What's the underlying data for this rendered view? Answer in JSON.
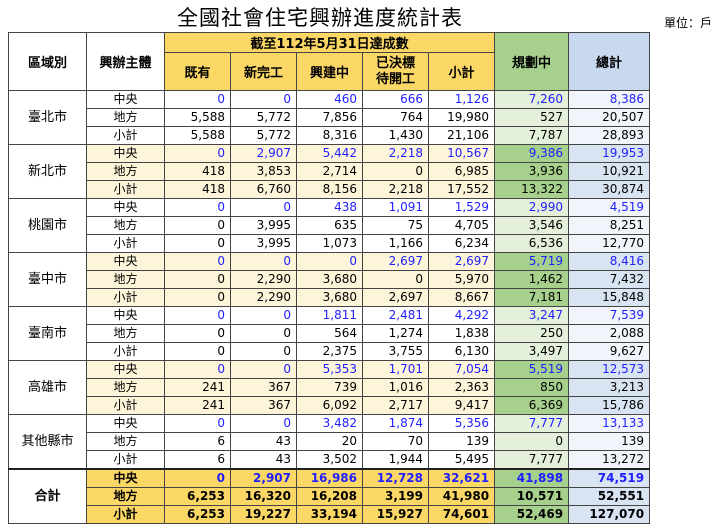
{
  "title": "全國社會住宅興辦進度統計表",
  "unit": "單位：戶",
  "headers": {
    "region": "區域別",
    "agency": "興辦主體",
    "period": "截至112年5月31日達成數",
    "existing": "既有",
    "completed": "新完工",
    "building": "興建中",
    "awarded": "已決標待開工",
    "subtotal": "小計",
    "planning": "規劃中",
    "total": "總計"
  },
  "regions": [
    {
      "name": "臺北市",
      "rows": [
        {
          "type": "中央",
          "v": [
            "0",
            "0",
            "460",
            "666",
            "1,126",
            "7,260",
            "8,386"
          ]
        },
        {
          "type": "地方",
          "v": [
            "5,588",
            "5,772",
            "7,856",
            "764",
            "19,980",
            "527",
            "20,507"
          ]
        },
        {
          "type": "小計",
          "v": [
            "5,588",
            "5,772",
            "8,316",
            "1,430",
            "21,106",
            "7,787",
            "28,893"
          ]
        }
      ]
    },
    {
      "name": "新北市",
      "rows": [
        {
          "type": "中央",
          "v": [
            "0",
            "2,907",
            "5,442",
            "2,218",
            "10,567",
            "9,386",
            "19,953"
          ]
        },
        {
          "type": "地方",
          "v": [
            "418",
            "3,853",
            "2,714",
            "0",
            "6,985",
            "3,936",
            "10,921"
          ]
        },
        {
          "type": "小計",
          "v": [
            "418",
            "6,760",
            "8,156",
            "2,218",
            "17,552",
            "13,322",
            "30,874"
          ]
        }
      ]
    },
    {
      "name": "桃園市",
      "rows": [
        {
          "type": "中央",
          "v": [
            "0",
            "0",
            "438",
            "1,091",
            "1,529",
            "2,990",
            "4,519"
          ]
        },
        {
          "type": "地方",
          "v": [
            "0",
            "3,995",
            "635",
            "75",
            "4,705",
            "3,546",
            "8,251"
          ]
        },
        {
          "type": "小計",
          "v": [
            "0",
            "3,995",
            "1,073",
            "1,166",
            "6,234",
            "6,536",
            "12,770"
          ]
        }
      ]
    },
    {
      "name": "臺中市",
      "rows": [
        {
          "type": "中央",
          "v": [
            "0",
            "0",
            "0",
            "2,697",
            "2,697",
            "5,719",
            "8,416"
          ]
        },
        {
          "type": "地方",
          "v": [
            "0",
            "2,290",
            "3,680",
            "0",
            "5,970",
            "1,462",
            "7,432"
          ]
        },
        {
          "type": "小計",
          "v": [
            "0",
            "2,290",
            "3,680",
            "2,697",
            "8,667",
            "7,181",
            "15,848"
          ]
        }
      ]
    },
    {
      "name": "臺南市",
      "rows": [
        {
          "type": "中央",
          "v": [
            "0",
            "0",
            "1,811",
            "2,481",
            "4,292",
            "3,247",
            "7,539"
          ]
        },
        {
          "type": "地方",
          "v": [
            "0",
            "0",
            "564",
            "1,274",
            "1,838",
            "250",
            "2,088"
          ]
        },
        {
          "type": "小計",
          "v": [
            "0",
            "0",
            "2,375",
            "3,755",
            "6,130",
            "3,497",
            "9,627"
          ]
        }
      ]
    },
    {
      "name": "高雄市",
      "rows": [
        {
          "type": "中央",
          "v": [
            "0",
            "0",
            "5,353",
            "1,701",
            "7,054",
            "5,519",
            "12,573"
          ]
        },
        {
          "type": "地方",
          "v": [
            "241",
            "367",
            "739",
            "1,016",
            "2,363",
            "850",
            "3,213"
          ]
        },
        {
          "type": "小計",
          "v": [
            "241",
            "367",
            "6,092",
            "2,717",
            "9,417",
            "6,369",
            "15,786"
          ]
        }
      ]
    },
    {
      "name": "其他縣市",
      "rows": [
        {
          "type": "中央",
          "v": [
            "0",
            "0",
            "3,482",
            "1,874",
            "5,356",
            "7,777",
            "13,133"
          ]
        },
        {
          "type": "地方",
          "v": [
            "6",
            "43",
            "20",
            "70",
            "139",
            "0",
            "139"
          ]
        },
        {
          "type": "小計",
          "v": [
            "6",
            "43",
            "3,502",
            "1,944",
            "5,495",
            "7,777",
            "13,272"
          ]
        }
      ]
    },
    {
      "name": "合計",
      "rows": [
        {
          "type": "中央",
          "v": [
            "0",
            "2,907",
            "16,986",
            "12,728",
            "32,621",
            "41,898",
            "74,519"
          ]
        },
        {
          "type": "地方",
          "v": [
            "6,253",
            "16,320",
            "16,208",
            "3,199",
            "41,980",
            "10,571",
            "52,551"
          ]
        },
        {
          "type": "小計",
          "v": [
            "6,253",
            "19,227",
            "33,194",
            "15,927",
            "74,601",
            "52,469",
            "127,070"
          ]
        }
      ]
    }
  ],
  "colors": {
    "gold": "#fbd766",
    "green": "#a6d08b",
    "blue_header": "#c8d8ef",
    "blue_text": "#1f1fff"
  }
}
